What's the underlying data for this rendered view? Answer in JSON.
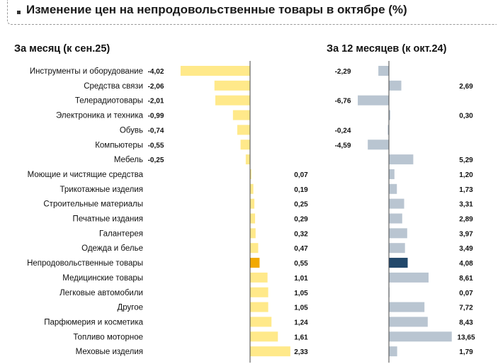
{
  "header": {
    "title": "Изменение цен на непродовольственные товары в октябре (%)"
  },
  "chart_data": [
    {
      "type": "bar",
      "orientation": "horizontal",
      "title": "За месяц (к сен.25)",
      "categories": [
        "Инструменты и оборудование",
        "Средства связи",
        "Телерадиотовары",
        "Электроника и техника ",
        "Обувь",
        "Компьютеры",
        "Мебель",
        "Моющие и чистящие средства",
        "Трикотажные изделия",
        "Строительные материалы",
        "Печатные издания",
        "Галантерея",
        "Одежда и белье",
        "Непродовольственные товары",
        "Медицинские товары",
        "Легковые автомобили",
        "Другое",
        "Парфюмерия и косметика",
        "Топливо моторное",
        "Меховые изделия"
      ],
      "values": [
        -4.02,
        -2.06,
        -2.01,
        -0.99,
        -0.74,
        -0.55,
        -0.25,
        0.07,
        0.19,
        0.25,
        0.29,
        0.32,
        0.47,
        0.55,
        1.01,
        1.05,
        1.05,
        1.24,
        1.61,
        2.33
      ],
      "labels": [
        "-4,02",
        "-2,06",
        "-2,01",
        "-0,99",
        "-0,74",
        "-0,55",
        "-0,25",
        "0,07",
        "0,19",
        "0,25",
        "0,29",
        "0,32",
        "0,47",
        "0,55",
        "1,01",
        "1,05",
        "1,05",
        "1,24",
        "1,61",
        "2,33"
      ],
      "highlight_index": 13,
      "colors": {
        "bar": "#FFE98A",
        "highlight": "#F2A900",
        "axis": "#444444"
      }
    },
    {
      "type": "bar",
      "orientation": "horizontal",
      "title": "За 12 месяцев (к окт.24)",
      "categories": [
        "Инструменты и оборудование",
        "Средства связи",
        "Телерадиотовары",
        "Электроника и техника ",
        "Обувь",
        "Компьютеры",
        "Мебель",
        "Моющие и чистящие средства",
        "Трикотажные изделия",
        "Строительные материалы",
        "Печатные издания",
        "Галантерея",
        "Одежда и белье",
        "Непродовольственные товары",
        "Медицинские товары",
        "Легковые автомобили",
        "Другое",
        "Парфюмерия и косметика",
        "Топливо моторное",
        "Меховые изделия"
      ],
      "values": [
        -2.29,
        2.69,
        -6.76,
        0.3,
        -0.24,
        -4.59,
        5.29,
        1.2,
        1.73,
        3.31,
        2.89,
        3.97,
        3.49,
        4.08,
        8.61,
        0.07,
        7.72,
        8.43,
        13.65,
        1.79
      ],
      "labels": [
        "-2,29",
        "2,69",
        "-6,76",
        "0,30",
        "-0,24",
        "-4,59",
        "5,29",
        "1,20",
        "1,73",
        "3,31",
        "2,89",
        "3,97",
        "3,49",
        "4,08",
        "8,61",
        "0,07",
        "7,72",
        "8,43",
        "13,65",
        "1,79"
      ],
      "highlight_index": 13,
      "colors": {
        "bar": "#B9C5D1",
        "highlight": "#22486B",
        "axis": "#444444"
      }
    }
  ]
}
